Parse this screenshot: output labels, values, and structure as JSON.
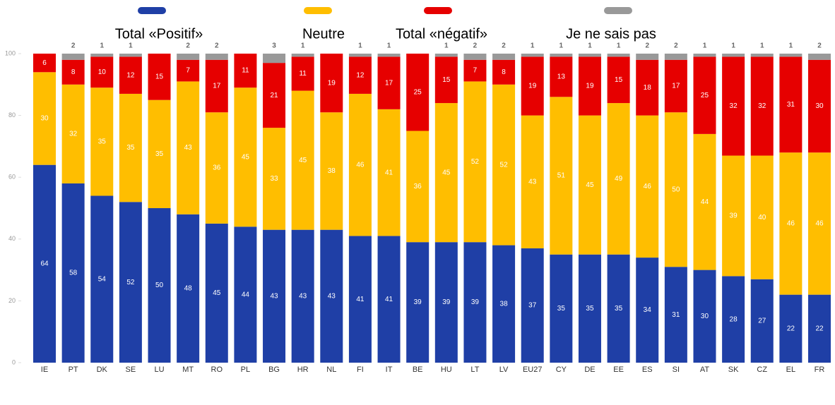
{
  "chart_data": {
    "type": "stacked_bar",
    "categories": [
      "IE",
      "PT",
      "DK",
      "SE",
      "LU",
      "MT",
      "RO",
      "PL",
      "BG",
      "HR",
      "NL",
      "FI",
      "IT",
      "BE",
      "HU",
      "LT",
      "LV",
      "EU27",
      "CY",
      "DE",
      "EE",
      "ES",
      "SI",
      "AT",
      "SK",
      "CZ",
      "EL",
      "FR"
    ],
    "series": [
      {
        "name": "Total «Positif»",
        "color": "#1f3fa6",
        "values": [
          64,
          58,
          54,
          52,
          50,
          48,
          45,
          44,
          43,
          43,
          43,
          41,
          41,
          39,
          39,
          39,
          38,
          37,
          35,
          35,
          35,
          34,
          31,
          30,
          28,
          27,
          22,
          22
        ]
      },
      {
        "name": "Neutre",
        "color": "#ffbe00",
        "values": [
          30,
          32,
          35,
          35,
          35,
          43,
          36,
          45,
          33,
          45,
          38,
          46,
          41,
          36,
          45,
          52,
          52,
          43,
          51,
          45,
          49,
          46,
          50,
          44,
          39,
          40,
          46,
          46
        ]
      },
      {
        "name": "Total «négatif»",
        "color": "#e60000",
        "values": [
          6,
          8,
          10,
          12,
          15,
          7,
          17,
          11,
          21,
          11,
          19,
          12,
          17,
          25,
          15,
          7,
          8,
          19,
          13,
          19,
          15,
          18,
          17,
          25,
          32,
          32,
          31,
          30
        ]
      },
      {
        "name": "Je ne sais pas",
        "color": "#999999",
        "values": [
          null,
          2,
          1,
          1,
          null,
          2,
          2,
          null,
          3,
          1,
          null,
          1,
          1,
          null,
          1,
          2,
          2,
          1,
          1,
          1,
          1,
          2,
          2,
          1,
          1,
          1,
          1,
          2
        ]
      }
    ],
    "ylim": [
      0,
      100
    ],
    "yticks": [
      0,
      20,
      40,
      60,
      80,
      100
    ]
  }
}
